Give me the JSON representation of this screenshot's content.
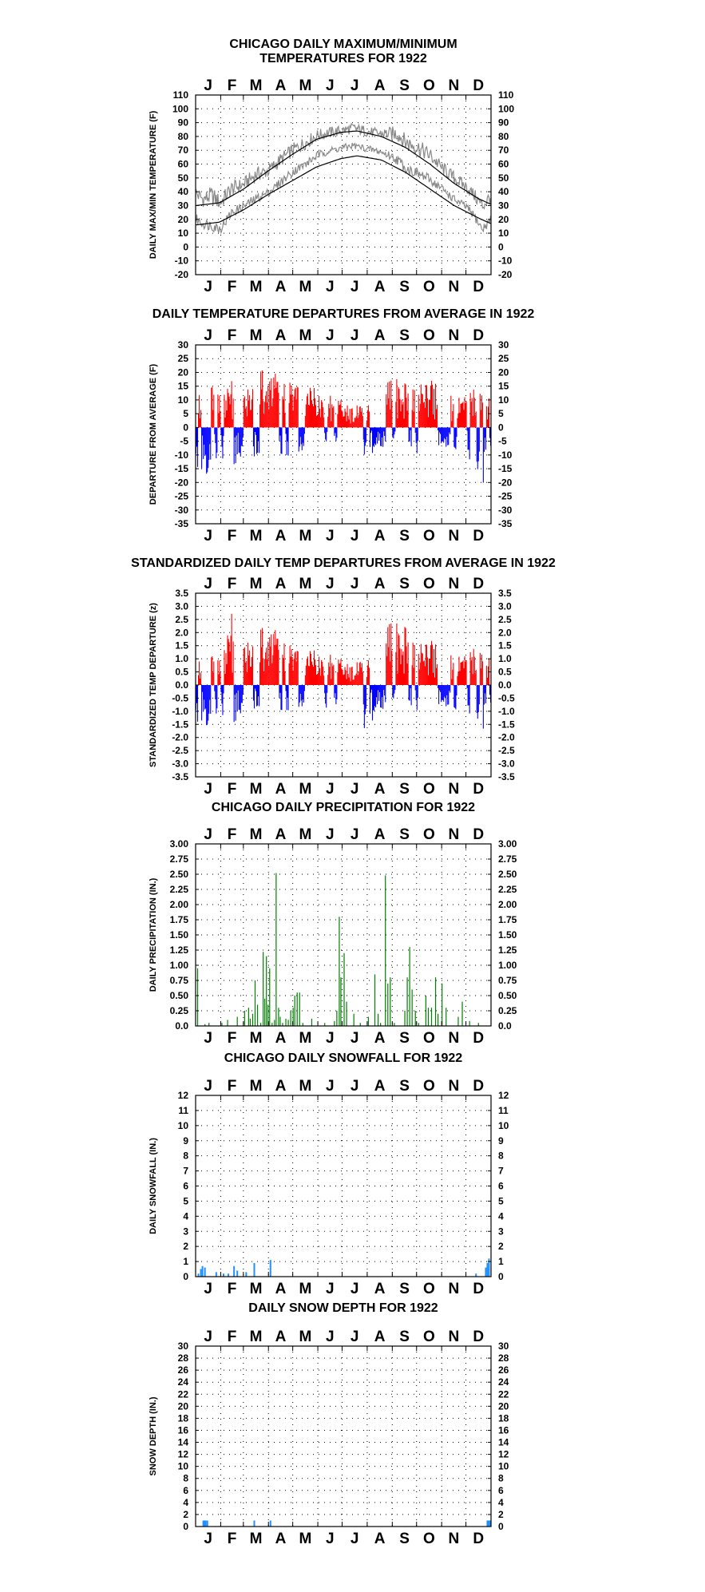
{
  "colors": {
    "max": "#888888",
    "normal": "#000000",
    "above": "#ff0000",
    "below": "#0000ff",
    "precip": "#008000",
    "snow": "#1e90ff"
  },
  "month_labels": [
    "J",
    "F",
    "M",
    "A",
    "M",
    "J",
    "J",
    "A",
    "S",
    "O",
    "N",
    "D"
  ],
  "chart_data": [
    {
      "id": "temps",
      "type": "line",
      "title": [
        "CHICAGO DAILY MAXIMUM/MINIMUM",
        "TEMPERATURES FOR 1922"
      ],
      "ylabel": "DAILY MAX/MIN TEMPERATURE (F)",
      "ylim": [
        -20,
        110
      ],
      "yticks": [
        -20,
        -10,
        0,
        10,
        20,
        30,
        40,
        50,
        60,
        70,
        80,
        90,
        100,
        110
      ],
      "grid": true,
      "series": [
        {
          "role": "daily-max-min-range",
          "control_points": [
            [
              1,
              45,
              15
            ],
            [
              10,
              40,
              12
            ],
            [
              20,
              44,
              10
            ],
            [
              31,
              38,
              8
            ],
            [
              45,
              48,
              20
            ],
            [
              59,
              50,
              25
            ],
            [
              75,
              58,
              30
            ],
            [
              90,
              60,
              35
            ],
            [
              105,
              68,
              42
            ],
            [
              120,
              75,
              50
            ],
            [
              135,
              80,
              55
            ],
            [
              150,
              85,
              62
            ],
            [
              165,
              87,
              66
            ],
            [
              180,
              88,
              68
            ],
            [
              195,
              90,
              70
            ],
            [
              210,
              88,
              68
            ],
            [
              225,
              86,
              66
            ],
            [
              240,
              87,
              62
            ],
            [
              250,
              88,
              58
            ],
            [
              260,
              82,
              52
            ],
            [
              275,
              78,
              48
            ],
            [
              290,
              72,
              44
            ],
            [
              305,
              62,
              38
            ],
            [
              320,
              55,
              30
            ],
            [
              335,
              48,
              25
            ],
            [
              345,
              42,
              18
            ],
            [
              355,
              35,
              8
            ],
            [
              365,
              42,
              15
            ]
          ]
        },
        {
          "role": "normal-max",
          "control_points": [
            [
              1,
              30
            ],
            [
              30,
              32
            ],
            [
              60,
              42
            ],
            [
              90,
              55
            ],
            [
              120,
              67
            ],
            [
              150,
              78
            ],
            [
              180,
              83
            ],
            [
              200,
              84
            ],
            [
              230,
              80
            ],
            [
              260,
              72
            ],
            [
              290,
              60
            ],
            [
              320,
              46
            ],
            [
              350,
              35
            ],
            [
              365,
              31
            ]
          ]
        },
        {
          "role": "normal-min",
          "control_points": [
            [
              1,
              16
            ],
            [
              30,
              18
            ],
            [
              60,
              27
            ],
            [
              90,
              38
            ],
            [
              120,
              48
            ],
            [
              150,
              58
            ],
            [
              180,
              64
            ],
            [
              200,
              66
            ],
            [
              230,
              63
            ],
            [
              260,
              54
            ],
            [
              290,
              42
            ],
            [
              320,
              30
            ],
            [
              350,
              21
            ],
            [
              365,
              17
            ]
          ]
        }
      ]
    },
    {
      "id": "departures",
      "type": "bar",
      "title": [
        "DAILY TEMPERATURE DEPARTURES FROM AVERAGE IN 1922"
      ],
      "ylabel": "DEPARTURE FROM AVERAGE (F)",
      "ylim": [
        -35,
        30
      ],
      "yticks": [
        -35,
        -30,
        -25,
        -20,
        -15,
        -10,
        -5,
        0,
        5,
        10,
        15,
        20,
        25,
        30
      ],
      "grid": true,
      "envelope": [
        [
          1,
          15,
          -15
        ],
        [
          10,
          18,
          -18
        ],
        [
          20,
          15,
          -18
        ],
        [
          31,
          16,
          -12
        ],
        [
          45,
          18,
          -15
        ],
        [
          59,
          12,
          -10
        ],
        [
          75,
          20,
          -12
        ],
        [
          90,
          22,
          -10
        ],
        [
          105,
          18,
          -12
        ],
        [
          120,
          18,
          -10
        ],
        [
          135,
          16,
          -8
        ],
        [
          150,
          14,
          -10
        ],
        [
          165,
          12,
          -6
        ],
        [
          180,
          10,
          -8
        ],
        [
          195,
          8,
          -6
        ],
        [
          210,
          8,
          -12
        ],
        [
          225,
          12,
          -8
        ],
        [
          240,
          18,
          -6
        ],
        [
          250,
          18,
          -5
        ],
        [
          260,
          18,
          -8
        ],
        [
          275,
          16,
          -10
        ],
        [
          290,
          18,
          -8
        ],
        [
          305,
          16,
          -8
        ],
        [
          320,
          14,
          -10
        ],
        [
          335,
          12,
          -10
        ],
        [
          345,
          14,
          -16
        ],
        [
          355,
          12,
          -22
        ],
        [
          365,
          12,
          -12
        ]
      ]
    },
    {
      "id": "standardized",
      "type": "bar",
      "title": [
        "STANDARDIZED DAILY TEMP DEPARTURES FROM AVERAGE IN 1922"
      ],
      "ylabel": "STANDARDIZED TEMP DEPARTURE (z)",
      "ylim": [
        -3.5,
        3.5
      ],
      "yticks": [
        "-3.5",
        "-3.0",
        "-2.5",
        "-2.0",
        "-1.5",
        "-1.0",
        "-0.5",
        "0.0",
        "0.5",
        "1.0",
        "1.5",
        "2.0",
        "2.5",
        "3.0",
        "3.5"
      ],
      "grid": true,
      "envelope": [
        [
          1,
          1.2,
          -1.5
        ],
        [
          10,
          1.3,
          -1.6
        ],
        [
          20,
          1.1,
          -1.7
        ],
        [
          31,
          1.3,
          -1.2
        ],
        [
          45,
          2.9,
          -1.6
        ],
        [
          59,
          1.6,
          -1.0
        ],
        [
          75,
          2.0,
          -1.0
        ],
        [
          90,
          2.4,
          -1.0
        ],
        [
          105,
          1.9,
          -1.2
        ],
        [
          120,
          1.6,
          -0.9
        ],
        [
          135,
          1.4,
          -0.8
        ],
        [
          150,
          1.3,
          -1.0
        ],
        [
          165,
          1.2,
          -1.2
        ],
        [
          180,
          1.0,
          -1.0
        ],
        [
          195,
          0.8,
          -1.0
        ],
        [
          210,
          1.0,
          -2.0
        ],
        [
          225,
          1.2,
          -1.0
        ],
        [
          240,
          2.5,
          -0.8
        ],
        [
          250,
          2.4,
          -0.6
        ],
        [
          260,
          2.5,
          -1.0
        ],
        [
          275,
          1.6,
          -1.0
        ],
        [
          290,
          1.8,
          -0.9
        ],
        [
          305,
          1.5,
          -0.9
        ],
        [
          320,
          1.4,
          -1.2
        ],
        [
          335,
          1.2,
          -1.0
        ],
        [
          345,
          1.4,
          -1.4
        ],
        [
          355,
          1.2,
          -1.8
        ],
        [
          365,
          1.1,
          -1.2
        ]
      ]
    },
    {
      "id": "precip",
      "type": "bar",
      "title": [
        "CHICAGO DAILY PRECIPITATION FOR 1922"
      ],
      "ylabel": "DAILY PRECIPITATION (IN.)",
      "ylim": [
        0,
        3.0
      ],
      "yticks": [
        "0.0",
        "0.25",
        "0.50",
        "0.75",
        "1.00",
        "1.25",
        "1.50",
        "1.75",
        "2.00",
        "2.25",
        "2.50",
        "2.75",
        "3.00"
      ],
      "grid": true,
      "days": [
        [
          3,
          0.95
        ],
        [
          12,
          0.03
        ],
        [
          17,
          0.05
        ],
        [
          33,
          0.05
        ],
        [
          40,
          0.1
        ],
        [
          52,
          0.15
        ],
        [
          61,
          0.25
        ],
        [
          66,
          0.3
        ],
        [
          68,
          0.12
        ],
        [
          71,
          0.2
        ],
        [
          74,
          0.75
        ],
        [
          77,
          0.35
        ],
        [
          81,
          0.05
        ],
        [
          84,
          1.22
        ],
        [
          86,
          0.45
        ],
        [
          88,
          1.15
        ],
        [
          90,
          0.35
        ],
        [
          92,
          0.95
        ],
        [
          95,
          0.05
        ],
        [
          98,
          0.1
        ],
        [
          100,
          2.52
        ],
        [
          103,
          0.3
        ],
        [
          105,
          0.15
        ],
        [
          108,
          0.05
        ],
        [
          112,
          0.12
        ],
        [
          115,
          0.1
        ],
        [
          118,
          0.25
        ],
        [
          121,
          0.3
        ],
        [
          123,
          0.5
        ],
        [
          126,
          0.55
        ],
        [
          129,
          0.55
        ],
        [
          133,
          0.05
        ],
        [
          144,
          0.12
        ],
        [
          160,
          0.05
        ],
        [
          172,
          0.08
        ],
        [
          175,
          0.25
        ],
        [
          178,
          1.8
        ],
        [
          180,
          0.8
        ],
        [
          184,
          1.2
        ],
        [
          187,
          0.4
        ],
        [
          196,
          0.2
        ],
        [
          204,
          0.05
        ],
        [
          214,
          0.15
        ],
        [
          222,
          0.85
        ],
        [
          226,
          0.2
        ],
        [
          229,
          0.05
        ],
        [
          235,
          2.48
        ],
        [
          238,
          0.7
        ],
        [
          241,
          0.8
        ],
        [
          246,
          0.05
        ],
        [
          259,
          0.25
        ],
        [
          262,
          0.8
        ],
        [
          265,
          1.3
        ],
        [
          268,
          0.6
        ],
        [
          272,
          0.25
        ],
        [
          276,
          0.05
        ],
        [
          285,
          0.5
        ],
        [
          288,
          0.3
        ],
        [
          292,
          0.3
        ],
        [
          297,
          0.8
        ],
        [
          300,
          0.2
        ],
        [
          305,
          0.7
        ],
        [
          310,
          0.3
        ],
        [
          325,
          0.15
        ],
        [
          330,
          0.4
        ],
        [
          339,
          0.08
        ],
        [
          350,
          0.05
        ]
      ]
    },
    {
      "id": "snowfall",
      "type": "bar",
      "title": [
        "CHICAGO DAILY SNOWFALL FOR 1922"
      ],
      "ylabel": "DAILY SNOWFALL (IN.)",
      "ylim": [
        0,
        12
      ],
      "yticks": [
        0,
        1,
        2,
        3,
        4,
        5,
        6,
        7,
        8,
        9,
        10,
        11,
        12
      ],
      "grid": true,
      "days": [
        [
          4,
          0.2
        ],
        [
          7,
          0.5
        ],
        [
          9,
          0.7
        ],
        [
          12,
          0.6
        ],
        [
          26,
          0.3
        ],
        [
          35,
          0.2
        ],
        [
          41,
          0.2
        ],
        [
          48,
          0.7
        ],
        [
          52,
          0.4
        ],
        [
          63,
          0.3
        ],
        [
          73,
          0.9
        ],
        [
          93,
          1.1
        ],
        [
          347,
          0.2
        ],
        [
          359,
          0.6
        ],
        [
          361,
          0.9
        ],
        [
          363,
          1.2
        ]
      ]
    },
    {
      "id": "snowdepth",
      "type": "bar",
      "title": [
        "DAILY SNOW DEPTH FOR 1922"
      ],
      "ylabel": "SNOW DEPTH (IN.)",
      "ylim": [
        0,
        30
      ],
      "yticks": [
        0,
        2,
        4,
        6,
        8,
        10,
        12,
        14,
        16,
        18,
        20,
        22,
        24,
        26,
        28,
        30
      ],
      "grid": true,
      "days": [
        [
          10,
          1
        ],
        [
          11,
          1
        ],
        [
          12,
          1
        ],
        [
          13,
          1
        ],
        [
          15,
          1
        ],
        [
          73,
          1
        ],
        [
          93,
          1
        ],
        [
          361,
          1
        ],
        [
          362,
          1
        ],
        [
          363,
          1
        ],
        [
          364,
          1
        ],
        [
          365,
          1
        ]
      ]
    }
  ]
}
